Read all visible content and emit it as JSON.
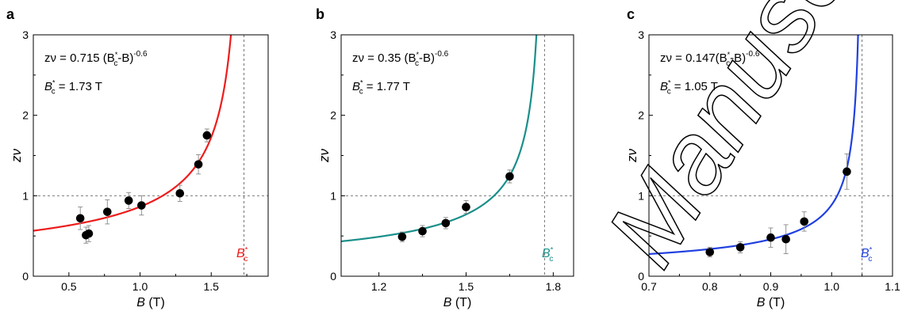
{
  "watermark": {
    "text": "Manuscript",
    "color": "#000000"
  },
  "chart_data": [
    {
      "panel": "a",
      "type": "scatter",
      "xlabel": {
        "var": "B",
        "unit": "(T)"
      },
      "ylabel": "zν",
      "xlim": [
        0.25,
        1.9
      ],
      "ylim": [
        0,
        3
      ],
      "xticks": [
        0.5,
        1.0,
        1.5
      ],
      "xtick_labels": [
        "0.5",
        "1.0",
        "1.5"
      ],
      "yticks": [
        0,
        1,
        2,
        3
      ],
      "ytick_labels": [
        "0",
        "1",
        "2",
        "3"
      ],
      "annotation_line1": {
        "lhs": "zν = 0.715 (B",
        "rhs": "-B)",
        "exp": "-0.6",
        "sub": "c",
        "sup": "*"
      },
      "annotation_line2": {
        "lhs": "B",
        "sub": "c",
        "sup": "*",
        "rhs": " = 1.73 T"
      },
      "corner_label": {
        "text": "B",
        "sub": "c",
        "sup": "*"
      },
      "critical_field": 1.73,
      "reference_y": 1,
      "fit": {
        "prefactor": 0.715,
        "exponent": -0.6,
        "color": "#ee1c1c"
      },
      "points": [
        {
          "x": 0.58,
          "y": 0.72,
          "err": 0.14
        },
        {
          "x": 0.62,
          "y": 0.51,
          "err": 0.1
        },
        {
          "x": 0.64,
          "y": 0.53,
          "err": 0.1
        },
        {
          "x": 0.77,
          "y": 0.8,
          "err": 0.15
        },
        {
          "x": 0.92,
          "y": 0.94,
          "err": 0.1
        },
        {
          "x": 1.01,
          "y": 0.88,
          "err": 0.12
        },
        {
          "x": 1.28,
          "y": 1.03,
          "err": 0.1
        },
        {
          "x": 1.41,
          "y": 1.39,
          "err": 0.12
        },
        {
          "x": 1.47,
          "y": 1.75,
          "err": 0.08
        }
      ]
    },
    {
      "panel": "b",
      "type": "scatter",
      "xlabel": {
        "var": "B",
        "unit": "(T)"
      },
      "ylabel": "zν",
      "xlim": [
        1.07,
        1.87
      ],
      "ylim": [
        0,
        3
      ],
      "xticks": [
        1.2,
        1.5,
        1.8
      ],
      "xtick_labels": [
        "1.2",
        "1.5",
        "1.8"
      ],
      "yticks": [
        0,
        1,
        2,
        3
      ],
      "ytick_labels": [
        "0",
        "1",
        "2",
        "3"
      ],
      "annotation_line1": {
        "lhs": "zν = 0.35 (B",
        "rhs": "-B)",
        "exp": "-0.6",
        "sub": "c",
        "sup": "*"
      },
      "annotation_line2": {
        "lhs": "B",
        "sub": "c",
        "sup": "*",
        "rhs": " = 1.77 T"
      },
      "corner_label": {
        "text": "B",
        "sub": "c",
        "sup": "*"
      },
      "critical_field": 1.77,
      "reference_y": 1,
      "fit": {
        "prefactor": 0.35,
        "exponent": -0.6,
        "color": "#1a8f8a"
      },
      "points": [
        {
          "x": 1.28,
          "y": 0.49,
          "err": 0.06
        },
        {
          "x": 1.35,
          "y": 0.56,
          "err": 0.07
        },
        {
          "x": 1.43,
          "y": 0.66,
          "err": 0.07
        },
        {
          "x": 1.5,
          "y": 0.86,
          "err": 0.08
        },
        {
          "x": 1.65,
          "y": 1.24,
          "err": 0.08
        }
      ]
    },
    {
      "panel": "c",
      "type": "scatter",
      "xlabel": {
        "var": "B",
        "unit": "(T)"
      },
      "ylabel": "zν",
      "xlim": [
        0.7,
        1.1
      ],
      "ylim": [
        0,
        3
      ],
      "xticks": [
        0.7,
        0.8,
        0.9,
        1.0,
        1.1
      ],
      "xtick_labels": [
        "0.7",
        "0.8",
        "0.9",
        "1.0",
        "1.1"
      ],
      "yticks": [
        0,
        1,
        2,
        3
      ],
      "ytick_labels": [
        "0",
        "1",
        "2",
        "3"
      ],
      "annotation_line1": {
        "lhs": "zν = 0.147(B",
        "rhs": "-B)",
        "exp": "-0.6",
        "sub": "c",
        "sup": "*"
      },
      "annotation_line2": {
        "lhs": "B",
        "sub": "c",
        "sup": "*",
        "rhs": " = 1.05 T"
      },
      "corner_label": {
        "text": "B",
        "sub": "c",
        "sup": "*"
      },
      "critical_field": 1.05,
      "reference_y": 1,
      "fit": {
        "prefactor": 0.147,
        "exponent": -0.6,
        "color": "#2040e0"
      },
      "points": [
        {
          "x": 0.8,
          "y": 0.3,
          "err": 0.06
        },
        {
          "x": 0.85,
          "y": 0.36,
          "err": 0.07
        },
        {
          "x": 0.9,
          "y": 0.48,
          "err": 0.12
        },
        {
          "x": 0.925,
          "y": 0.46,
          "err": 0.18
        },
        {
          "x": 0.955,
          "y": 0.68,
          "err": 0.12
        },
        {
          "x": 1.025,
          "y": 1.3,
          "err": 0.22
        }
      ]
    }
  ]
}
